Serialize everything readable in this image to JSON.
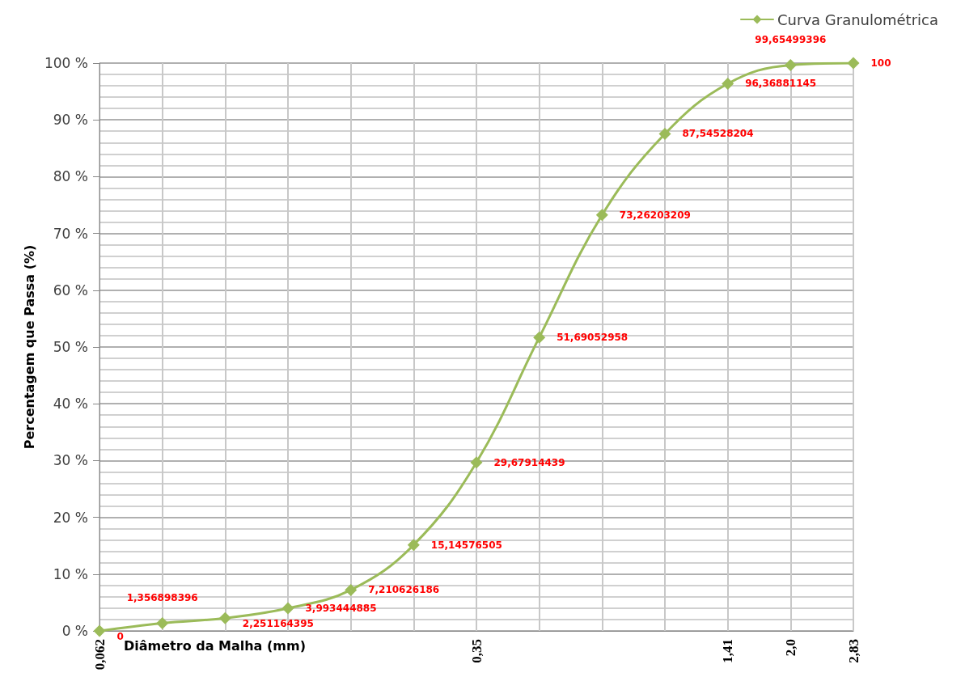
{
  "chart_data": {
    "type": "line",
    "xlabel": "Diâmetro da Malha (mm)",
    "ylabel": "Percentagem que Passa (%)",
    "categories": [
      "0,062",
      null,
      null,
      null,
      null,
      null,
      "0,35",
      null,
      null,
      null,
      "1,41",
      "2,0",
      "2,83"
    ],
    "series": [
      {
        "name": "Curva Granulométrica",
        "color": "#9bbb59",
        "values": [
          0,
          1.356898396,
          2.251164395,
          3.993444885,
          7.210626186,
          15.14576505,
          29.67914439,
          51.69052958,
          73.26203209,
          87.54528204,
          96.36881145,
          99.65499396,
          100
        ],
        "value_labels": [
          "0",
          "1,356898396",
          "2,251164395",
          "3,993444885",
          "7,210626186",
          "15,14576505",
          "29,67914439",
          "51,69052958",
          "73,26203209",
          "87,54528204",
          "96,36881145",
          "99,65499396",
          "100"
        ]
      }
    ],
    "ylim": [
      0,
      100
    ],
    "yticks": [
      {
        "value": 0,
        "label": "0 %"
      },
      {
        "value": 10,
        "label": "10 %"
      },
      {
        "value": 20,
        "label": "20 %"
      },
      {
        "value": 30,
        "label": "30 %"
      },
      {
        "value": 40,
        "label": "40 %"
      },
      {
        "value": 50,
        "label": "50 %"
      },
      {
        "value": 60,
        "label": "60 %"
      },
      {
        "value": 70,
        "label": "70 %"
      },
      {
        "value": 80,
        "label": "80 %"
      },
      {
        "value": 90,
        "label": "90 %"
      },
      {
        "value": 100,
        "label": "100 %"
      }
    ],
    "grid": true,
    "legend": "top right",
    "marker": "diamond",
    "line_style": "solid"
  }
}
